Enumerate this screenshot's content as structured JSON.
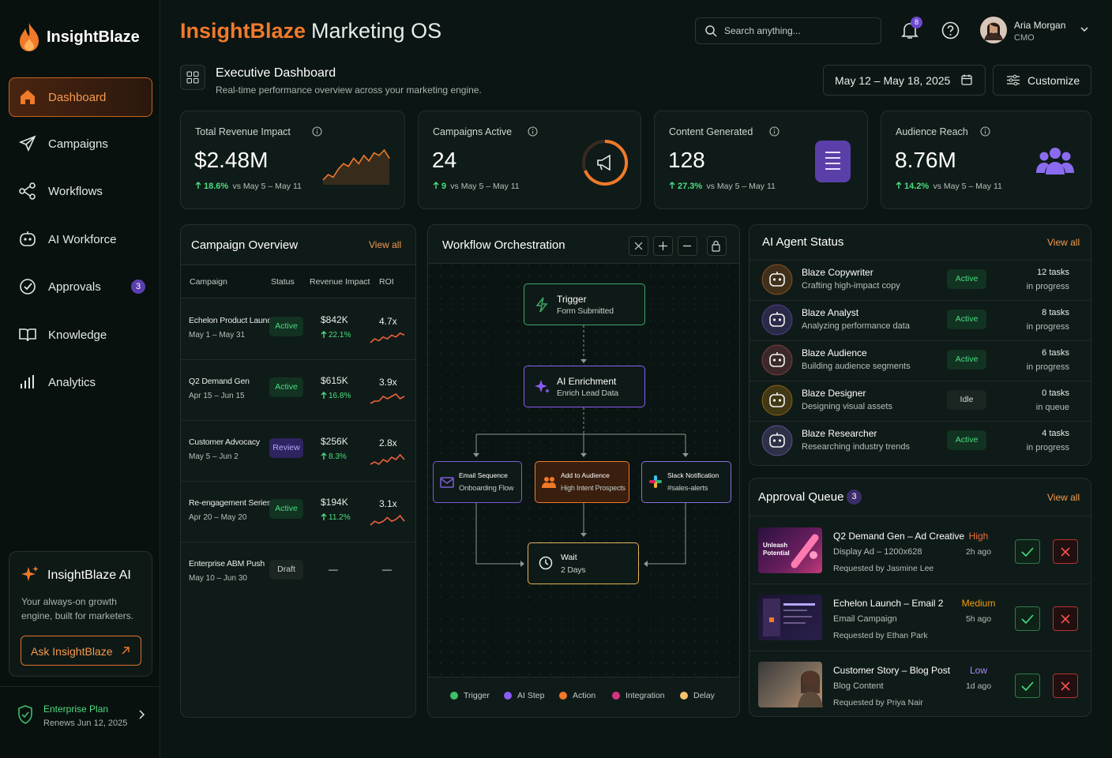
{
  "brand": "InsightBlaze",
  "nav": [
    {
      "label": "Dashboard"
    },
    {
      "label": "Campaigns"
    },
    {
      "label": "Workflows"
    },
    {
      "label": "AI Workforce"
    },
    {
      "label": "Approvals",
      "badge": 3
    },
    {
      "label": "Knowledge"
    },
    {
      "label": "Analytics"
    }
  ],
  "promo": {
    "title": "InsightBlaze AI",
    "text": "Your always-on growth engine, built for marketers.",
    "button": "Ask InsightBlaze"
  },
  "plan": {
    "title": "Enterprise Plan",
    "renews": "Renews Jun 12, 2025"
  },
  "header": {
    "title_accent": "InsightBlaze",
    "title_rest": "Marketing OS",
    "search": "Search anything...",
    "notifications": 8,
    "user": "Aria Morgan",
    "role": "CMO"
  },
  "page": {
    "title": "Executive Dashboard",
    "subtitle": "Real-time performance overview across your marketing engine.",
    "date_range": "May 12 – May 18, 2025",
    "customize": "Customize"
  },
  "kpis": [
    {
      "label": "Total Revenue Impact",
      "value": "$2.48M",
      "change": "18.6%",
      "compare": "vs May 5 – May 11",
      "trend": [
        3,
        5,
        4,
        7,
        9,
        8,
        11,
        9,
        12,
        10,
        13,
        12,
        14,
        11
      ]
    },
    {
      "label": "Campaigns Active",
      "value": "24",
      "change": "9",
      "compare": "vs May 5 – May 11"
    },
    {
      "label": "Content Generated",
      "value": "128",
      "change": "27.3%",
      "compare": "vs May 5 – May 11"
    },
    {
      "label": "Audience Reach",
      "value": "8.76M",
      "change": "14.2%",
      "compare": "vs May 5 – May 11"
    }
  ],
  "campaigns": {
    "title": "Campaign Overview",
    "view_all": "View all",
    "columns": [
      "Campaign",
      "Status",
      "Revenue Impact",
      "ROI"
    ],
    "rows": [
      {
        "name": "Echelon Product Launch",
        "dates": "May 1 – May 31",
        "status": "Active",
        "revenue": "$842K",
        "change": "22.1%",
        "roi": "4.7x",
        "trend": [
          2,
          4,
          3,
          5,
          4,
          6,
          5,
          7,
          6
        ]
      },
      {
        "name": "Q2 Demand Gen",
        "dates": "Apr 15 – Jun 15",
        "status": "Active",
        "revenue": "$615K",
        "change": "16.8%",
        "roi": "3.9x",
        "trend": [
          2,
          3,
          3,
          5,
          4,
          5,
          6,
          4,
          5
        ]
      },
      {
        "name": "Customer Advocacy",
        "dates": "May 5 – Jun 2",
        "status": "Review",
        "revenue": "$256K",
        "change": "8.3%",
        "roi": "2.8x",
        "trend": [
          2,
          3,
          2,
          4,
          3,
          5,
          4,
          6,
          4
        ]
      },
      {
        "name": "Re-engagement Series",
        "dates": "Apr 20 – May 20",
        "status": "Active",
        "revenue": "$194K",
        "change": "11.2%",
        "roi": "3.1x",
        "trend": [
          2,
          4,
          3,
          4,
          6,
          4,
          5,
          7,
          4
        ]
      },
      {
        "name": "Enterprise ABM Push",
        "dates": "May 10 – Jun 30",
        "status": "Draft",
        "revenue": "—",
        "roi": "—"
      }
    ]
  },
  "workflow": {
    "title": "Workflow Orchestration",
    "nodes": [
      {
        "title": "Trigger",
        "sub": "Form Submitted",
        "color": "#3fa66b"
      },
      {
        "title": "AI Enrichment",
        "sub": "Enrich Lead Data",
        "color": "#8b5cf6"
      },
      {
        "title": "Email Sequence",
        "sub": "Onboarding Flow",
        "color": "#7c5cd6"
      },
      {
        "title": "Add to Audience",
        "sub": "High Intent Prospects",
        "color": "#f07a2a"
      },
      {
        "title": "Slack Notification",
        "sub": "#sales-alerts",
        "color": "#8a6fe0"
      },
      {
        "title": "Wait",
        "sub": "2 Days",
        "color": "#e6b35a"
      }
    ],
    "legend": [
      {
        "name": "Trigger",
        "color": "#3fbf6b"
      },
      {
        "name": "AI Step",
        "color": "#8b5cf6"
      },
      {
        "name": "Action",
        "color": "#f07a2a"
      },
      {
        "name": "Integration",
        "color": "#d63384"
      },
      {
        "name": "Delay",
        "color": "#f5c26b"
      }
    ]
  },
  "agents": {
    "title": "AI Agent Status",
    "view_all": "View all",
    "items": [
      {
        "name": "Blaze Copywriter",
        "desc": "Crafting high-impact copy",
        "status": "Active",
        "tasks": "12 tasks",
        "tasks_sub": "in progress",
        "color": "#f07a2a"
      },
      {
        "name": "Blaze Analyst",
        "desc": "Analyzing performance data",
        "status": "Active",
        "tasks": "8 tasks",
        "tasks_sub": "in progress",
        "color": "#8b5cf6"
      },
      {
        "name": "Blaze Audience",
        "desc": "Building audience segments",
        "status": "Active",
        "tasks": "6 tasks",
        "tasks_sub": "in progress",
        "color": "#e0556a"
      },
      {
        "name": "Blaze Designer",
        "desc": "Designing visual assets",
        "status": "Idle",
        "tasks": "0 tasks",
        "tasks_sub": "in queue",
        "color": "#f59e0b"
      },
      {
        "name": "Blaze Researcher",
        "desc": "Researching industry trends",
        "status": "Active",
        "tasks": "4 tasks",
        "tasks_sub": "in progress",
        "color": "#9b7cf0"
      }
    ]
  },
  "approvals": {
    "title": "Approval Queue",
    "count": 3,
    "view_all": "View all",
    "items": [
      {
        "title": "Q2 Demand Gen – Ad Creative",
        "type": "Display Ad – 1200x628",
        "requested": "Requested by Jasmine Lee",
        "priority": "High",
        "age": "2h ago",
        "thumb": "Unleash Potential"
      },
      {
        "title": "Echelon Launch – Email 2",
        "type": "Email Campaign",
        "requested": "Requested by Ethan Park",
        "priority": "Medium",
        "age": "5h ago"
      },
      {
        "title": "Customer Story – Blog Post",
        "type": "Blog Content",
        "requested": "Requested by Priya Nair",
        "priority": "Low",
        "age": "1d ago"
      }
    ]
  }
}
